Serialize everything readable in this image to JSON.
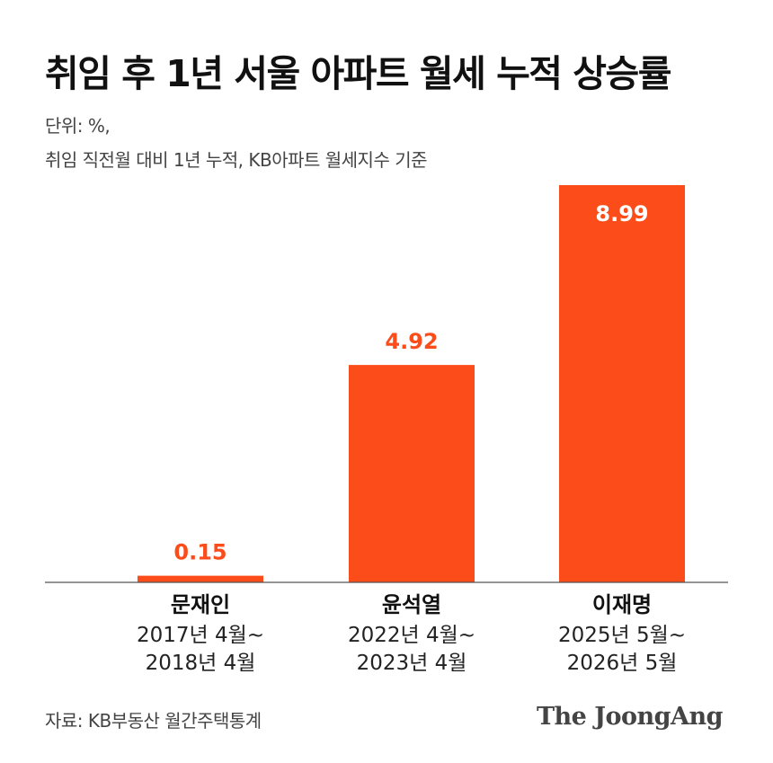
{
  "header": {
    "title": "취임 후 1년 서울 아파트 월세 누적 상승률",
    "unit_line": "단위: %,",
    "note_line": "취임 직전월 대비 1년 누적, KB아파트 월세지수 기준"
  },
  "colors": {
    "bar": "#fc4c1a",
    "bar_label_outside": "#fc4c1a",
    "bar_label_inside": "#ffffff",
    "baseline": "#555555"
  },
  "chart_data": {
    "type": "bar",
    "categories": [
      "문재인",
      "윤석열",
      "이재명"
    ],
    "periods": [
      [
        "2017년 4월~",
        "2018년 4월"
      ],
      [
        "2022년 4월~",
        "2023년 4월"
      ],
      [
        "2025년 5월~",
        "2026년 5월"
      ]
    ],
    "values": [
      0.15,
      4.92,
      8.99
    ],
    "value_labels": [
      "0.15",
      "4.92",
      "8.99"
    ],
    "label_position": [
      "outside",
      "outside",
      "inside"
    ],
    "ylim": [
      0,
      8.99
    ],
    "grid": false,
    "legend": "none"
  },
  "footer": {
    "source": "자료: KB부동산 월간주택통계",
    "brand": "The JoongAng"
  }
}
